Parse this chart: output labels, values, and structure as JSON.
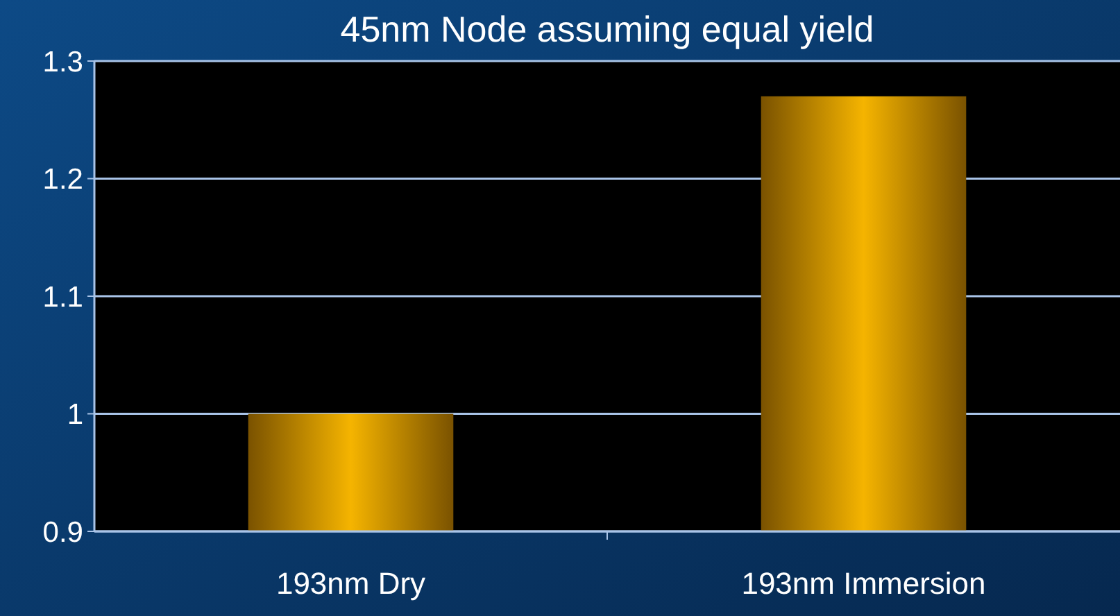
{
  "chart_data": {
    "type": "bar",
    "title": "45nm Node assuming equal yield",
    "categories": [
      "193nm Dry",
      "193nm Immersion"
    ],
    "values": [
      1.0,
      1.27
    ],
    "color": "#f5b400",
    "ylim": [
      0.9,
      1.3
    ],
    "yticks": [
      0.9,
      1,
      1.1,
      1.2,
      1.3
    ],
    "grid": "y"
  }
}
